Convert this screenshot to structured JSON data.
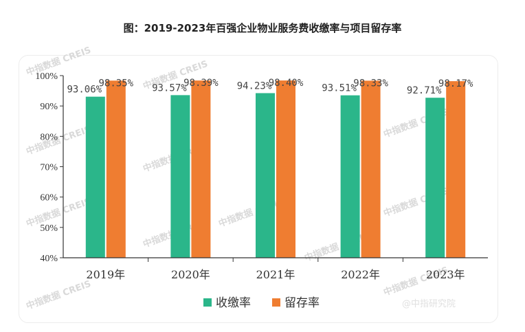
{
  "title": "图：2019-2023年百强企业物业服务费收缴率与项目留存率",
  "watermark_text": "中指数据 CREIS",
  "credit": "@中指研究院",
  "chart_data": {
    "type": "bar",
    "categories": [
      "2019年",
      "2020年",
      "2021年",
      "2022年",
      "2023年"
    ],
    "series": [
      {
        "name": "收缴率",
        "color": "#2bb68a",
        "values": [
          93.06,
          93.57,
          94.23,
          93.51,
          92.71
        ],
        "labels": [
          "93.06%",
          "93.57%",
          "94.23%",
          "93.51%",
          "92.71%"
        ]
      },
      {
        "name": "留存率",
        "color": "#ef7d31",
        "values": [
          98.35,
          98.39,
          98.4,
          98.33,
          98.17
        ],
        "labels": [
          "98.35%",
          "98.39%",
          "98.40%",
          "98.33%",
          "98.17%"
        ]
      }
    ],
    "ylim": [
      40,
      100
    ],
    "yticks": [
      40,
      50,
      60,
      70,
      80,
      90,
      100
    ],
    "ytick_labels": [
      "40%",
      "50%",
      "60%",
      "70%",
      "80%",
      "90%",
      "100%"
    ],
    "xlabel": "",
    "ylabel": "",
    "grid": false,
    "legend": "bottom-center"
  }
}
